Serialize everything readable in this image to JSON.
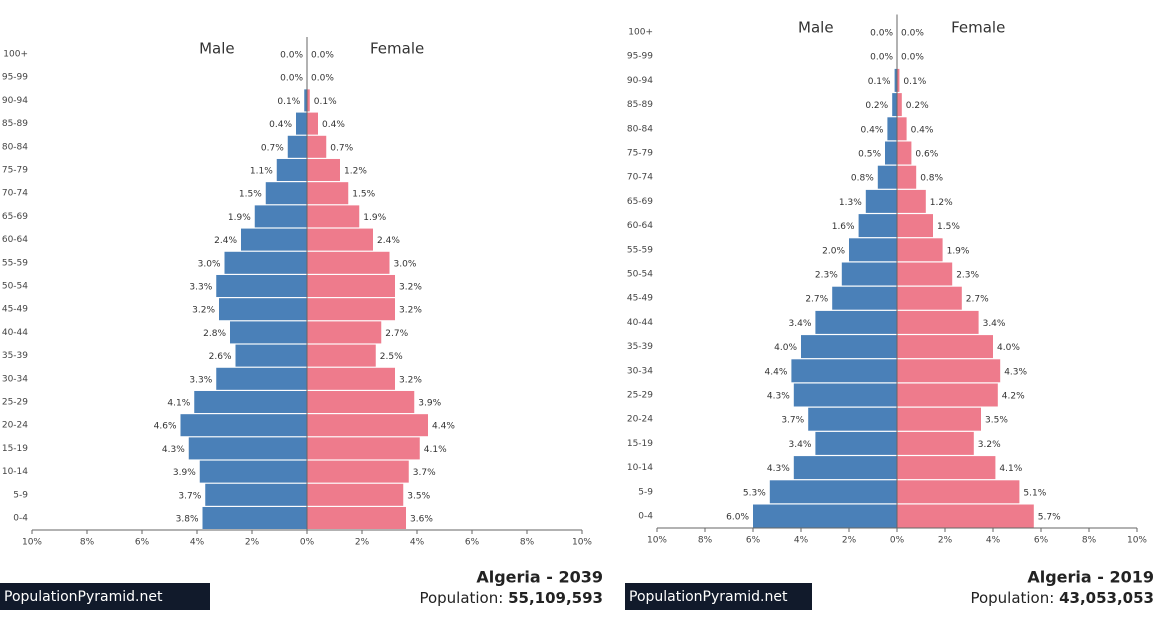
{
  "chart_data": [
    {
      "type": "pyramid",
      "title": "Algeria - 2039",
      "population_label": "Population:",
      "population": "55,109,593",
      "source": "PopulationPyramid.net",
      "categories": [
        "0-4",
        "5-9",
        "10-14",
        "15-19",
        "20-24",
        "25-29",
        "30-34",
        "35-39",
        "40-44",
        "45-49",
        "50-54",
        "55-59",
        "60-64",
        "65-69",
        "70-74",
        "75-79",
        "80-84",
        "85-89",
        "90-94",
        "95-99",
        "100+"
      ],
      "series": [
        {
          "name": "Male",
          "color": "#4a80b8",
          "side": "left",
          "values": [
            3.8,
            3.7,
            3.9,
            4.3,
            4.6,
            4.1,
            3.3,
            2.6,
            2.8,
            3.2,
            3.3,
            3.0,
            2.4,
            1.9,
            1.5,
            1.1,
            0.7,
            0.4,
            0.1,
            0.0,
            0.0
          ],
          "value_labels": [
            "3.8%",
            "3.7%",
            "3.9%",
            "4.3%",
            "4.6%",
            "4.1%",
            "3.3%",
            "2.6%",
            "2.8%",
            "3.2%",
            "3.3%",
            "3.0%",
            "2.4%",
            "1.9%",
            "1.5%",
            "1.1%",
            "0.7%",
            "0.4%",
            "0.1%",
            "0.0%",
            "0.0%"
          ]
        },
        {
          "name": "Female",
          "color": "#ee7b8c",
          "side": "right",
          "values": [
            3.6,
            3.5,
            3.7,
            4.1,
            4.4,
            3.9,
            3.2,
            2.5,
            2.7,
            3.2,
            3.2,
            3.0,
            2.4,
            1.9,
            1.5,
            1.2,
            0.7,
            0.4,
            0.1,
            0.0,
            0.0
          ],
          "value_labels": [
            "3.6%",
            "3.5%",
            "3.7%",
            "4.1%",
            "4.4%",
            "3.9%",
            "3.2%",
            "2.5%",
            "2.7%",
            "3.2%",
            "3.2%",
            "3.0%",
            "2.4%",
            "1.9%",
            "1.5%",
            "1.2%",
            "0.7%",
            "0.4%",
            "0.1%",
            "0.0%",
            "0.0%"
          ]
        }
      ],
      "xlim": [
        -10,
        10
      ],
      "xticks": [
        {
          "value": -10,
          "label": "10%"
        },
        {
          "value": -8,
          "label": "8%"
        },
        {
          "value": -6,
          "label": "6%"
        },
        {
          "value": -4,
          "label": "4%"
        },
        {
          "value": -2,
          "label": "2%"
        },
        {
          "value": 0,
          "label": "0%"
        },
        {
          "value": 2,
          "label": "2%"
        },
        {
          "value": 4,
          "label": "4%"
        },
        {
          "value": 6,
          "label": "6%"
        },
        {
          "value": 8,
          "label": "8%"
        },
        {
          "value": 10,
          "label": "10%"
        }
      ]
    },
    {
      "type": "pyramid",
      "title": "Algeria - 2019",
      "population_label": "Population:",
      "population": "43,053,053",
      "source": "PopulationPyramid.net",
      "categories": [
        "0-4",
        "5-9",
        "10-14",
        "15-19",
        "20-24",
        "25-29",
        "30-34",
        "35-39",
        "40-44",
        "45-49",
        "50-54",
        "55-59",
        "60-64",
        "65-69",
        "70-74",
        "75-79",
        "80-84",
        "85-89",
        "90-94",
        "95-99",
        "100+"
      ],
      "series": [
        {
          "name": "Male",
          "color": "#4a80b8",
          "side": "left",
          "values": [
            6.0,
            5.3,
            4.3,
            3.4,
            3.7,
            4.3,
            4.4,
            4.0,
            3.4,
            2.7,
            2.3,
            2.0,
            1.6,
            1.3,
            0.8,
            0.5,
            0.4,
            0.2,
            0.1,
            0.0,
            0.0
          ],
          "value_labels": [
            "6.0%",
            "5.3%",
            "4.3%",
            "3.4%",
            "3.7%",
            "4.3%",
            "4.4%",
            "4.0%",
            "3.4%",
            "2.7%",
            "2.3%",
            "2.0%",
            "1.6%",
            "1.3%",
            "0.8%",
            "0.5%",
            "0.4%",
            "0.2%",
            "0.1%",
            "0.0%",
            "0.0%"
          ]
        },
        {
          "name": "Female",
          "color": "#ee7b8c",
          "side": "right",
          "values": [
            5.7,
            5.1,
            4.1,
            3.2,
            3.5,
            4.2,
            4.3,
            4.0,
            3.4,
            2.7,
            2.3,
            1.9,
            1.5,
            1.2,
            0.8,
            0.6,
            0.4,
            0.2,
            0.1,
            0.0,
            0.0
          ],
          "value_labels": [
            "5.7%",
            "5.1%",
            "4.1%",
            "3.2%",
            "3.5%",
            "4.2%",
            "4.3%",
            "4.0%",
            "3.4%",
            "2.7%",
            "2.3%",
            "1.9%",
            "1.5%",
            "1.2%",
            "0.8%",
            "0.6%",
            "0.4%",
            "0.2%",
            "0.1%",
            "0.0%",
            "0.0%"
          ]
        }
      ],
      "xlim": [
        -10,
        10
      ],
      "xticks": [
        {
          "value": -10,
          "label": "10%"
        },
        {
          "value": -8,
          "label": "8%"
        },
        {
          "value": -6,
          "label": "6%"
        },
        {
          "value": -4,
          "label": "4%"
        },
        {
          "value": -2,
          "label": "2%"
        },
        {
          "value": 0,
          "label": "0%"
        },
        {
          "value": 2,
          "label": "2%"
        },
        {
          "value": 4,
          "label": "4%"
        },
        {
          "value": 6,
          "label": "6%"
        },
        {
          "value": 8,
          "label": "8%"
        },
        {
          "value": 10,
          "label": "10%"
        }
      ]
    }
  ]
}
